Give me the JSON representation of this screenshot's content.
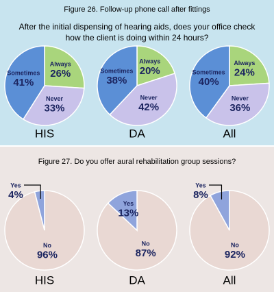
{
  "chart_data": [
    {
      "type": "pie",
      "title": "Figure 26. Follow-up phone call after fittings",
      "subtitle": [
        "After the initial dispensing of hearing aids, does your office check",
        "how the client is doing within 24 hours?"
      ],
      "categories": [
        "Always",
        "Never",
        "Sometimes"
      ],
      "colors": [
        "#a9d57c",
        "#c9c2ea",
        "#5b8fd6"
      ],
      "panels": [
        {
          "label": "HIS",
          "values": [
            26,
            33,
            41
          ],
          "value_labels": [
            "26%",
            "33%",
            "41%"
          ]
        },
        {
          "label": "DA",
          "values": [
            20,
            42,
            38
          ],
          "value_labels": [
            "20%",
            "42%",
            "38%"
          ]
        },
        {
          "label": "All",
          "values": [
            24,
            36,
            40
          ],
          "value_labels": [
            "24%",
            "36%",
            "40%"
          ]
        }
      ]
    },
    {
      "type": "pie",
      "title": "Figure 27. Do you offer aural rehabilitation group sessions?",
      "categories": [
        "No",
        "Yes"
      ],
      "colors": [
        "#e9d8d3",
        "#8fa4dc"
      ],
      "panels": [
        {
          "label": "HIS",
          "values": [
            96,
            4
          ],
          "value_labels": [
            "96%",
            "4%"
          ]
        },
        {
          "label": "DA",
          "values": [
            87,
            13
          ],
          "value_labels": [
            "87%",
            "13%"
          ]
        },
        {
          "label": "All",
          "values": [
            92,
            8
          ],
          "value_labels": [
            "92%",
            "8%"
          ]
        }
      ]
    }
  ]
}
